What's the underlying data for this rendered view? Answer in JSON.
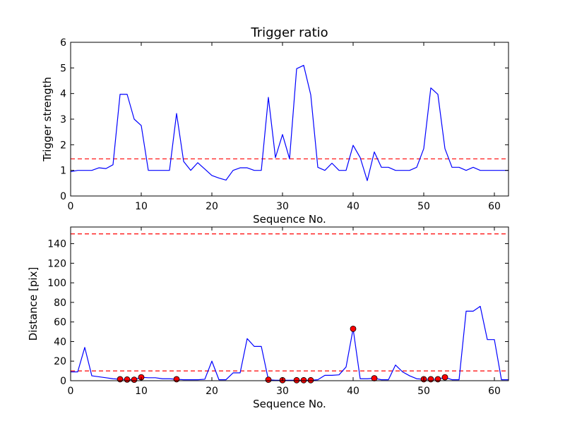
{
  "chart_data": [
    {
      "type": "line",
      "title": "Trigger ratio",
      "xlabel": "Sequence No.",
      "ylabel": "Trigger strength",
      "xlim": [
        0,
        62
      ],
      "ylim": [
        0,
        6
      ],
      "xticks": [
        0,
        10,
        20,
        30,
        40,
        50,
        60
      ],
      "yticks": [
        0,
        1,
        2,
        3,
        4,
        5,
        6
      ],
      "line_color": "#0000ff",
      "threshold": 1.45,
      "threshold_color": "#ff0000",
      "series": [
        {
          "x": [
            0,
            1,
            2,
            3,
            4,
            5,
            6,
            7,
            8,
            9,
            10,
            11,
            12,
            13,
            14,
            15,
            16,
            17,
            18,
            19,
            20,
            21,
            22,
            23,
            24,
            25,
            26,
            27,
            28,
            29,
            30,
            31,
            32,
            33,
            34,
            35,
            36,
            37,
            38,
            39,
            40,
            41,
            42,
            43,
            44,
            45,
            46,
            47,
            48,
            49,
            50,
            51,
            52,
            53,
            54,
            55,
            56,
            57,
            58,
            59,
            60,
            61,
            62
          ],
          "values": [
            0.95,
            1.0,
            1.0,
            1.0,
            1.1,
            1.07,
            1.22,
            3.97,
            3.97,
            3.0,
            2.75,
            1.0,
            1.0,
            1.0,
            1.0,
            3.22,
            1.35,
            1.0,
            1.3,
            1.05,
            0.8,
            0.7,
            0.62,
            1.0,
            1.1,
            1.1,
            1.0,
            1.0,
            3.85,
            1.5,
            2.4,
            1.45,
            4.97,
            5.1,
            3.95,
            1.12,
            1.0,
            1.28,
            1.0,
            1.0,
            1.98,
            1.5,
            0.6,
            1.72,
            1.12,
            1.12,
            1.0,
            1.0,
            1.0,
            1.12,
            1.85,
            4.22,
            3.97,
            1.85,
            1.12,
            1.12,
            1.0,
            1.12,
            1.0,
            1.0,
            1.0,
            1.0,
            1.0
          ]
        }
      ]
    },
    {
      "type": "line",
      "title": "",
      "xlabel": "Sequence No.",
      "ylabel": "Distance [pix]",
      "xlim": [
        0,
        62
      ],
      "ylim": [
        0,
        157
      ],
      "xticks": [
        0,
        10,
        20,
        30,
        40,
        50,
        60
      ],
      "yticks": [
        0,
        20,
        40,
        60,
        80,
        100,
        120,
        140
      ],
      "line_color": "#0000ff",
      "marker_color": "#ff0000",
      "thresholds": [
        10,
        150
      ],
      "threshold_color": "#ff0000",
      "series": [
        {
          "x": [
            0,
            1,
            2,
            3,
            4,
            5,
            6,
            7,
            8,
            9,
            10,
            11,
            12,
            13,
            14,
            15,
            16,
            17,
            18,
            19,
            20,
            21,
            22,
            23,
            24,
            25,
            26,
            27,
            28,
            29,
            30,
            31,
            32,
            33,
            34,
            35,
            36,
            37,
            38,
            39,
            40,
            41,
            42,
            43,
            44,
            45,
            46,
            47,
            48,
            49,
            50,
            51,
            52,
            53,
            54,
            55,
            56,
            57,
            58,
            59,
            60,
            61,
            62
          ],
          "values": [
            9,
            9,
            34,
            5,
            4,
            3,
            2,
            1.5,
            1.2,
            1,
            3.5,
            3,
            3,
            2,
            2,
            1.5,
            1,
            1,
            1,
            1.5,
            20,
            1,
            1,
            8,
            8,
            43,
            35,
            35,
            1,
            0.5,
            0.5,
            0.5,
            0.5,
            0.5,
            0.5,
            1,
            5.5,
            5.5,
            6,
            14,
            53,
            2,
            2,
            2.5,
            1,
            1,
            16,
            9,
            5,
            2,
            1.5,
            1.5,
            1.5,
            3.5,
            1,
            1,
            71,
            71,
            76,
            42,
            42,
            1,
            1
          ]
        }
      ],
      "markers": {
        "x": [
          7,
          8,
          9,
          10,
          15,
          28,
          30,
          32,
          33,
          34,
          40,
          43,
          50,
          51,
          52,
          53
        ],
        "values": [
          1.5,
          1.2,
          1,
          3.5,
          1.5,
          1,
          0.5,
          0.5,
          0.5,
          0.5,
          53,
          2.5,
          1.5,
          1.5,
          1.5,
          3.5
        ]
      }
    }
  ]
}
